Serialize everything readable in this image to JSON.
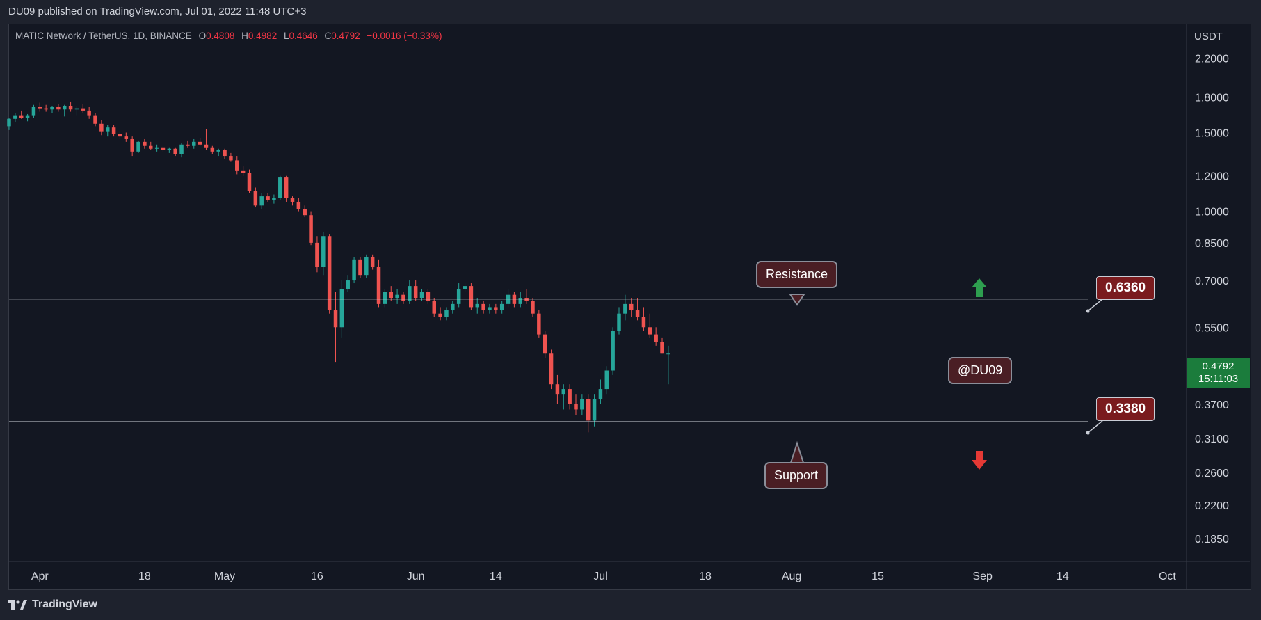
{
  "header": {
    "publisher_line": "DU09 published on TradingView.com, Jul 01, 2022 11:48 UTC+3"
  },
  "legend": {
    "symbol": "MATIC Network / TetherUS, 1D, BINANCE",
    "o_label": "O",
    "o": "0.4808",
    "h_label": "H",
    "h": "0.4982",
    "l_label": "L",
    "l": "0.4646",
    "c_label": "C",
    "c": "0.4792",
    "change": "−0.0016 (−0.33%)"
  },
  "price_axis": {
    "currency": "USDT"
  },
  "current_price": {
    "value": "0.4792",
    "countdown": "15:11:03",
    "color": "#1b7c3c"
  },
  "annotations": {
    "resistance_label": "Resistance",
    "support_label": "Support",
    "watermark": "@DU09",
    "resistance_price": "0.6360",
    "support_price": "0.3380"
  },
  "colors": {
    "up": "#26a69a",
    "down": "#ef5350",
    "background": "#131722",
    "arrow_up": "#2e9e4f",
    "arrow_down": "#e53935"
  },
  "footer": {
    "brand": "TradingView",
    "logo_icon": "tradingview-logo-icon"
  },
  "chart_data": {
    "type": "candlestick",
    "title": "MATIC Network / TetherUS, 1D, BINANCE",
    "ylabel": "USDT",
    "yscale": "log",
    "ylim": [
      0.165,
      2.62
    ],
    "y_ticks": [
      "2.2000",
      "1.8000",
      "1.5000",
      "1.2000",
      "1.0000",
      "0.8500",
      "0.7000",
      "0.5500",
      "0.4792",
      "0.3700",
      "0.3100",
      "0.2600",
      "0.2200",
      "0.1850"
    ],
    "x_ticks": [
      "Apr",
      "18",
      "May",
      "16",
      "Jun",
      "14",
      "Jul",
      "18",
      "Aug",
      "15",
      "Sep",
      "14",
      "Oct"
    ],
    "xlim": [
      "2022-03-27",
      "2022-10-04"
    ],
    "horizontal_levels": [
      {
        "label": "Resistance",
        "value": 0.636
      },
      {
        "label": "Support",
        "value": 0.338
      }
    ],
    "ohlc_start_date": "2022-03-27",
    "ohlc": [
      [
        1.55,
        1.62,
        1.52,
        1.61
      ],
      [
        1.61,
        1.66,
        1.58,
        1.64
      ],
      [
        1.64,
        1.68,
        1.61,
        1.62
      ],
      [
        1.62,
        1.65,
        1.59,
        1.64
      ],
      [
        1.64,
        1.73,
        1.62,
        1.71
      ],
      [
        1.71,
        1.75,
        1.67,
        1.7
      ],
      [
        1.7,
        1.73,
        1.67,
        1.69
      ],
      [
        1.69,
        1.72,
        1.66,
        1.71
      ],
      [
        1.71,
        1.74,
        1.67,
        1.69
      ],
      [
        1.69,
        1.73,
        1.63,
        1.72
      ],
      [
        1.72,
        1.76,
        1.67,
        1.69
      ],
      [
        1.69,
        1.72,
        1.64,
        1.7
      ],
      [
        1.7,
        1.74,
        1.66,
        1.68
      ],
      [
        1.68,
        1.71,
        1.61,
        1.64
      ],
      [
        1.64,
        1.66,
        1.55,
        1.57
      ],
      [
        1.57,
        1.6,
        1.48,
        1.51
      ],
      [
        1.51,
        1.56,
        1.47,
        1.54
      ],
      [
        1.54,
        1.56,
        1.47,
        1.49
      ],
      [
        1.49,
        1.51,
        1.45,
        1.47
      ],
      [
        1.47,
        1.5,
        1.43,
        1.45
      ],
      [
        1.45,
        1.47,
        1.33,
        1.36
      ],
      [
        1.36,
        1.44,
        1.35,
        1.43
      ],
      [
        1.43,
        1.45,
        1.38,
        1.4
      ],
      [
        1.4,
        1.43,
        1.37,
        1.38
      ],
      [
        1.38,
        1.41,
        1.36,
        1.39
      ],
      [
        1.39,
        1.4,
        1.36,
        1.37
      ],
      [
        1.37,
        1.39,
        1.35,
        1.38
      ],
      [
        1.38,
        1.39,
        1.33,
        1.34
      ],
      [
        1.34,
        1.42,
        1.32,
        1.41
      ],
      [
        1.41,
        1.44,
        1.39,
        1.4
      ],
      [
        1.4,
        1.45,
        1.38,
        1.43
      ],
      [
        1.43,
        1.46,
        1.4,
        1.41
      ],
      [
        1.41,
        1.53,
        1.37,
        1.39
      ],
      [
        1.39,
        1.4,
        1.34,
        1.36
      ],
      [
        1.36,
        1.38,
        1.33,
        1.37
      ],
      [
        1.37,
        1.38,
        1.31,
        1.33
      ],
      [
        1.33,
        1.35,
        1.29,
        1.3
      ],
      [
        1.3,
        1.33,
        1.21,
        1.23
      ],
      [
        1.23,
        1.26,
        1.2,
        1.22
      ],
      [
        1.22,
        1.24,
        1.1,
        1.11
      ],
      [
        1.11,
        1.13,
        1.02,
        1.03
      ],
      [
        1.03,
        1.1,
        1.01,
        1.08
      ],
      [
        1.08,
        1.1,
        1.05,
        1.06
      ],
      [
        1.06,
        1.09,
        1.04,
        1.07
      ],
      [
        1.07,
        1.2,
        1.06,
        1.19
      ],
      [
        1.19,
        1.2,
        1.05,
        1.07
      ],
      [
        1.07,
        1.08,
        1.03,
        1.05
      ],
      [
        1.05,
        1.07,
        1.0,
        1.01
      ],
      [
        1.01,
        1.03,
        0.97,
        0.98
      ],
      [
        0.98,
        1.0,
        0.84,
        0.85
      ],
      [
        0.85,
        0.88,
        0.73,
        0.75
      ],
      [
        0.75,
        0.9,
        0.72,
        0.88
      ],
      [
        0.88,
        0.89,
        0.59,
        0.6
      ],
      [
        0.6,
        0.66,
        0.46,
        0.55
      ],
      [
        0.55,
        0.7,
        0.52,
        0.67
      ],
      [
        0.67,
        0.72,
        0.66,
        0.7
      ],
      [
        0.7,
        0.79,
        0.69,
        0.78
      ],
      [
        0.78,
        0.79,
        0.71,
        0.72
      ],
      [
        0.72,
        0.8,
        0.71,
        0.79
      ],
      [
        0.79,
        0.8,
        0.74,
        0.75
      ],
      [
        0.75,
        0.78,
        0.61,
        0.62
      ],
      [
        0.62,
        0.67,
        0.61,
        0.66
      ],
      [
        0.66,
        0.68,
        0.63,
        0.64
      ],
      [
        0.64,
        0.67,
        0.62,
        0.65
      ],
      [
        0.65,
        0.66,
        0.62,
        0.63
      ],
      [
        0.63,
        0.7,
        0.62,
        0.68
      ],
      [
        0.68,
        0.7,
        0.63,
        0.64
      ],
      [
        0.64,
        0.67,
        0.63,
        0.66
      ],
      [
        0.66,
        0.67,
        0.62,
        0.63
      ],
      [
        0.63,
        0.64,
        0.58,
        0.59
      ],
      [
        0.59,
        0.61,
        0.57,
        0.58
      ],
      [
        0.58,
        0.61,
        0.57,
        0.6
      ],
      [
        0.6,
        0.63,
        0.59,
        0.62
      ],
      [
        0.62,
        0.69,
        0.61,
        0.67
      ],
      [
        0.67,
        0.69,
        0.66,
        0.68
      ],
      [
        0.68,
        0.69,
        0.6,
        0.61
      ],
      [
        0.61,
        0.64,
        0.59,
        0.62
      ],
      [
        0.62,
        0.63,
        0.59,
        0.6
      ],
      [
        0.6,
        0.62,
        0.59,
        0.61
      ],
      [
        0.61,
        0.62,
        0.59,
        0.6
      ],
      [
        0.6,
        0.63,
        0.59,
        0.62
      ],
      [
        0.62,
        0.67,
        0.61,
        0.65
      ],
      [
        0.65,
        0.66,
        0.61,
        0.62
      ],
      [
        0.62,
        0.66,
        0.61,
        0.64
      ],
      [
        0.64,
        0.67,
        0.62,
        0.63
      ],
      [
        0.63,
        0.64,
        0.58,
        0.59
      ],
      [
        0.59,
        0.6,
        0.52,
        0.53
      ],
      [
        0.53,
        0.54,
        0.47,
        0.48
      ],
      [
        0.48,
        0.49,
        0.4,
        0.41
      ],
      [
        0.41,
        0.43,
        0.37,
        0.39
      ],
      [
        0.39,
        0.41,
        0.36,
        0.4
      ],
      [
        0.4,
        0.41,
        0.36,
        0.37
      ],
      [
        0.37,
        0.39,
        0.35,
        0.36
      ],
      [
        0.36,
        0.39,
        0.35,
        0.38
      ],
      [
        0.38,
        0.39,
        0.32,
        0.34
      ],
      [
        0.34,
        0.39,
        0.33,
        0.38
      ],
      [
        0.38,
        0.42,
        0.37,
        0.4
      ],
      [
        0.4,
        0.45,
        0.39,
        0.44
      ],
      [
        0.44,
        0.55,
        0.43,
        0.54
      ],
      [
        0.54,
        0.61,
        0.53,
        0.59
      ],
      [
        0.59,
        0.65,
        0.57,
        0.62
      ],
      [
        0.62,
        0.64,
        0.58,
        0.6
      ],
      [
        0.6,
        0.64,
        0.57,
        0.58
      ],
      [
        0.58,
        0.61,
        0.54,
        0.55
      ],
      [
        0.55,
        0.59,
        0.52,
        0.53
      ],
      [
        0.53,
        0.55,
        0.5,
        0.51
      ],
      [
        0.51,
        0.52,
        0.48,
        0.48
      ],
      [
        0.48,
        0.5,
        0.41,
        0.48
      ]
    ]
  }
}
